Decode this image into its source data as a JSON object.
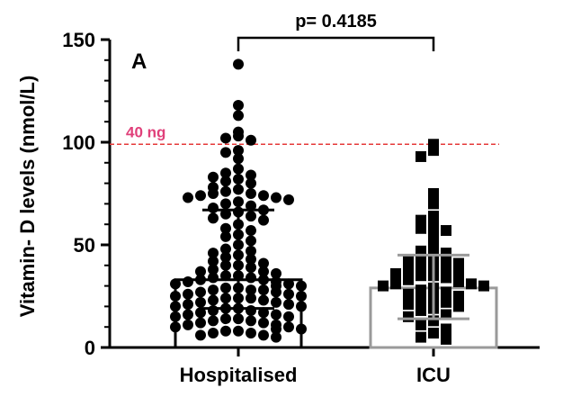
{
  "chart_data": {
    "type": "scatter",
    "ylabel": "Vitamin- D levels (nmol/L)",
    "ylim": [
      0,
      150
    ],
    "yticks": [
      0,
      50,
      100,
      150
    ],
    "panel_label": "A",
    "significance": {
      "text": "p= 0.4185",
      "between": [
        "Hospitalised",
        "ICU"
      ]
    },
    "reference_line": {
      "value": 99,
      "label": "40 ng",
      "color": "#e53939",
      "label_color": "#e0407a"
    },
    "categories": [
      "Hospitalised",
      "ICU"
    ],
    "groups": [
      {
        "name": "Hospitalised",
        "marker": "circle",
        "bar_color": "#000000",
        "mean": 33,
        "sd_upper": 67,
        "sd_lower": 19,
        "values": [
          138,
          118,
          113,
          105,
          103,
          102,
          101,
          96,
          95,
          92,
          87,
          85,
          84,
          83,
          82,
          81,
          80,
          78,
          77,
          76,
          75,
          75,
          74,
          74,
          73,
          73,
          72,
          71,
          70,
          69,
          68,
          67,
          66,
          65,
          64,
          63,
          62,
          60,
          58,
          57,
          55,
          54,
          52,
          50,
          48,
          47,
          46,
          45,
          44,
          43,
          42,
          41,
          40,
          40,
          39,
          38,
          37,
          37,
          36,
          35,
          35,
          34,
          34,
          33,
          33,
          32,
          32,
          31,
          31,
          30,
          30,
          29,
          29,
          28,
          28,
          28,
          27,
          27,
          26,
          26,
          25,
          25,
          24,
          24,
          24,
          23,
          23,
          22,
          22,
          21,
          21,
          20,
          20,
          19,
          19,
          18,
          18,
          17,
          17,
          16,
          16,
          15,
          15,
          14,
          14,
          13,
          13,
          12,
          12,
          11,
          11,
          10,
          10,
          9,
          9,
          8,
          8,
          7,
          7,
          6,
          6,
          5
        ]
      },
      {
        "name": "ICU",
        "marker": "square",
        "bar_color": "#9a9a9a",
        "mean": 29,
        "sd_upper": 45,
        "sd_lower": 14,
        "values": [
          99,
          96,
          93,
          75,
          70,
          64,
          62,
          60,
          58,
          57,
          55,
          50,
          47,
          46,
          45,
          44,
          43,
          42,
          41,
          40,
          39,
          38,
          38,
          37,
          36,
          35,
          35,
          34,
          33,
          32,
          31,
          31,
          30,
          30,
          29,
          28,
          27,
          26,
          25,
          24,
          23,
          22,
          21,
          20,
          19,
          18,
          16,
          15,
          13,
          11,
          9,
          7,
          5,
          4
        ]
      }
    ]
  }
}
